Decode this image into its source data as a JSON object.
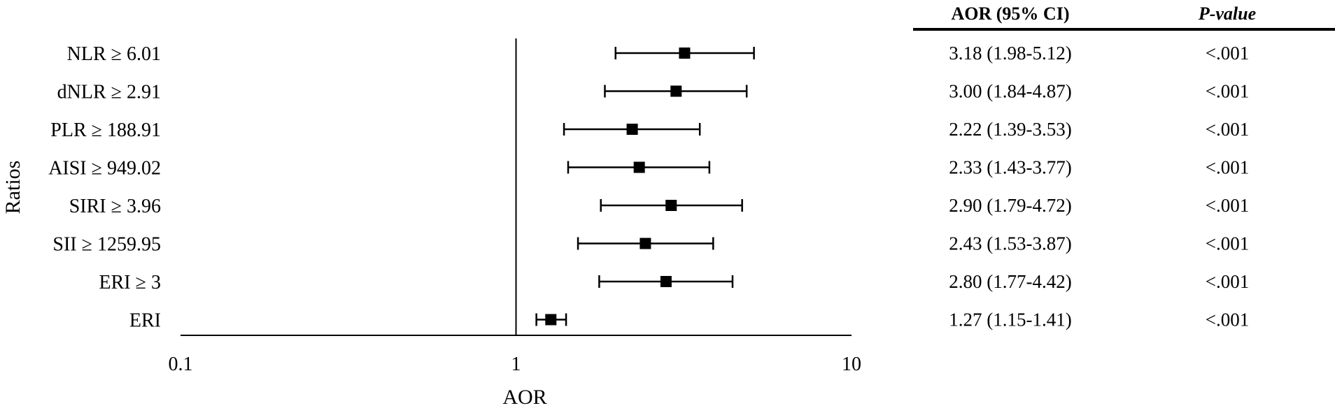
{
  "chart_data": {
    "type": "forest",
    "xlabel": "AOR",
    "ylabel": "Ratios",
    "x_scale": "log",
    "xlim": [
      0.1,
      10
    ],
    "x_ticks": [
      "0.1",
      "1",
      "10"
    ],
    "reference_line": 1,
    "table_headers": {
      "estimate": "AOR (95% CI)",
      "p": "P-value"
    },
    "rows": [
      {
        "label": "NLR ≥ 6.01",
        "aor": 3.18,
        "lower": 1.98,
        "upper": 5.12,
        "ci_text": "3.18 (1.98-5.12)",
        "p": "<.001"
      },
      {
        "label": "dNLR ≥ 2.91",
        "aor": 3.0,
        "lower": 1.84,
        "upper": 4.87,
        "ci_text": "3.00 (1.84-4.87)",
        "p": "<.001"
      },
      {
        "label": "PLR ≥ 188.91",
        "aor": 2.22,
        "lower": 1.39,
        "upper": 3.53,
        "ci_text": "2.22 (1.39-3.53)",
        "p": "<.001"
      },
      {
        "label": "AISI ≥ 949.02",
        "aor": 2.33,
        "lower": 1.43,
        "upper": 3.77,
        "ci_text": "2.33 (1.43-3.77)",
        "p": "<.001"
      },
      {
        "label": "SIRI ≥ 3.96",
        "aor": 2.9,
        "lower": 1.79,
        "upper": 4.72,
        "ci_text": "2.90 (1.79-4.72)",
        "p": "<.001"
      },
      {
        "label": "SII ≥ 1259.95",
        "aor": 2.43,
        "lower": 1.53,
        "upper": 3.87,
        "ci_text": "2.43 (1.53-3.87)",
        "p": "<.001"
      },
      {
        "label": "ERI ≥ 3",
        "aor": 2.8,
        "lower": 1.77,
        "upper": 4.42,
        "ci_text": "2.80 (1.77-4.42)",
        "p": "<.001"
      },
      {
        "label": "ERI",
        "aor": 1.27,
        "lower": 1.15,
        "upper": 1.41,
        "ci_text": "1.27 (1.15-1.41)",
        "p": "<.001"
      }
    ]
  }
}
